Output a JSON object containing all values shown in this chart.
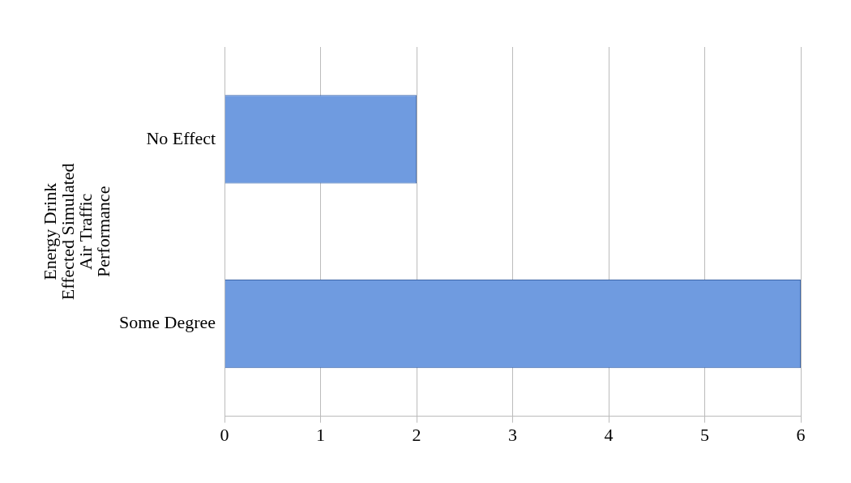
{
  "chart_data": {
    "type": "bar",
    "orientation": "horizontal",
    "ylabel": "Energy Drink Effected Simulated Air Traffic Performance",
    "categories": [
      "No Effect",
      "Some Degree"
    ],
    "values": [
      2,
      6
    ],
    "color": "#6f9be0",
    "xlim": [
      0,
      6
    ],
    "xticks": [
      0,
      1,
      2,
      3,
      4,
      5,
      6
    ],
    "grid": "x",
    "legend": false
  }
}
